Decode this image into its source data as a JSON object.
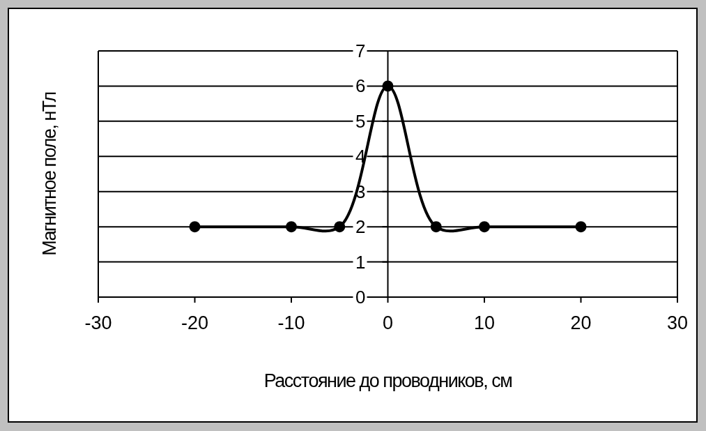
{
  "chart_data": {
    "type": "line",
    "xlabel": "Расстояние до проводников, см",
    "ylabel": "Магнитное поле, нТл",
    "x": [
      -20,
      -10,
      -5,
      0,
      5,
      10,
      20
    ],
    "series": [
      {
        "color": "#000000",
        "values": [
          2,
          2,
          2,
          6,
          2,
          2,
          2
        ]
      }
    ],
    "xlim": [
      -30,
      30
    ],
    "xticks": [
      -30,
      -20,
      -10,
      0,
      10,
      20,
      30
    ],
    "ylim": [
      0,
      7
    ],
    "yticks": [
      0,
      1,
      2,
      3,
      4,
      5,
      6,
      7
    ],
    "grid": "y",
    "marker": "circle",
    "line_style": "solid"
  }
}
